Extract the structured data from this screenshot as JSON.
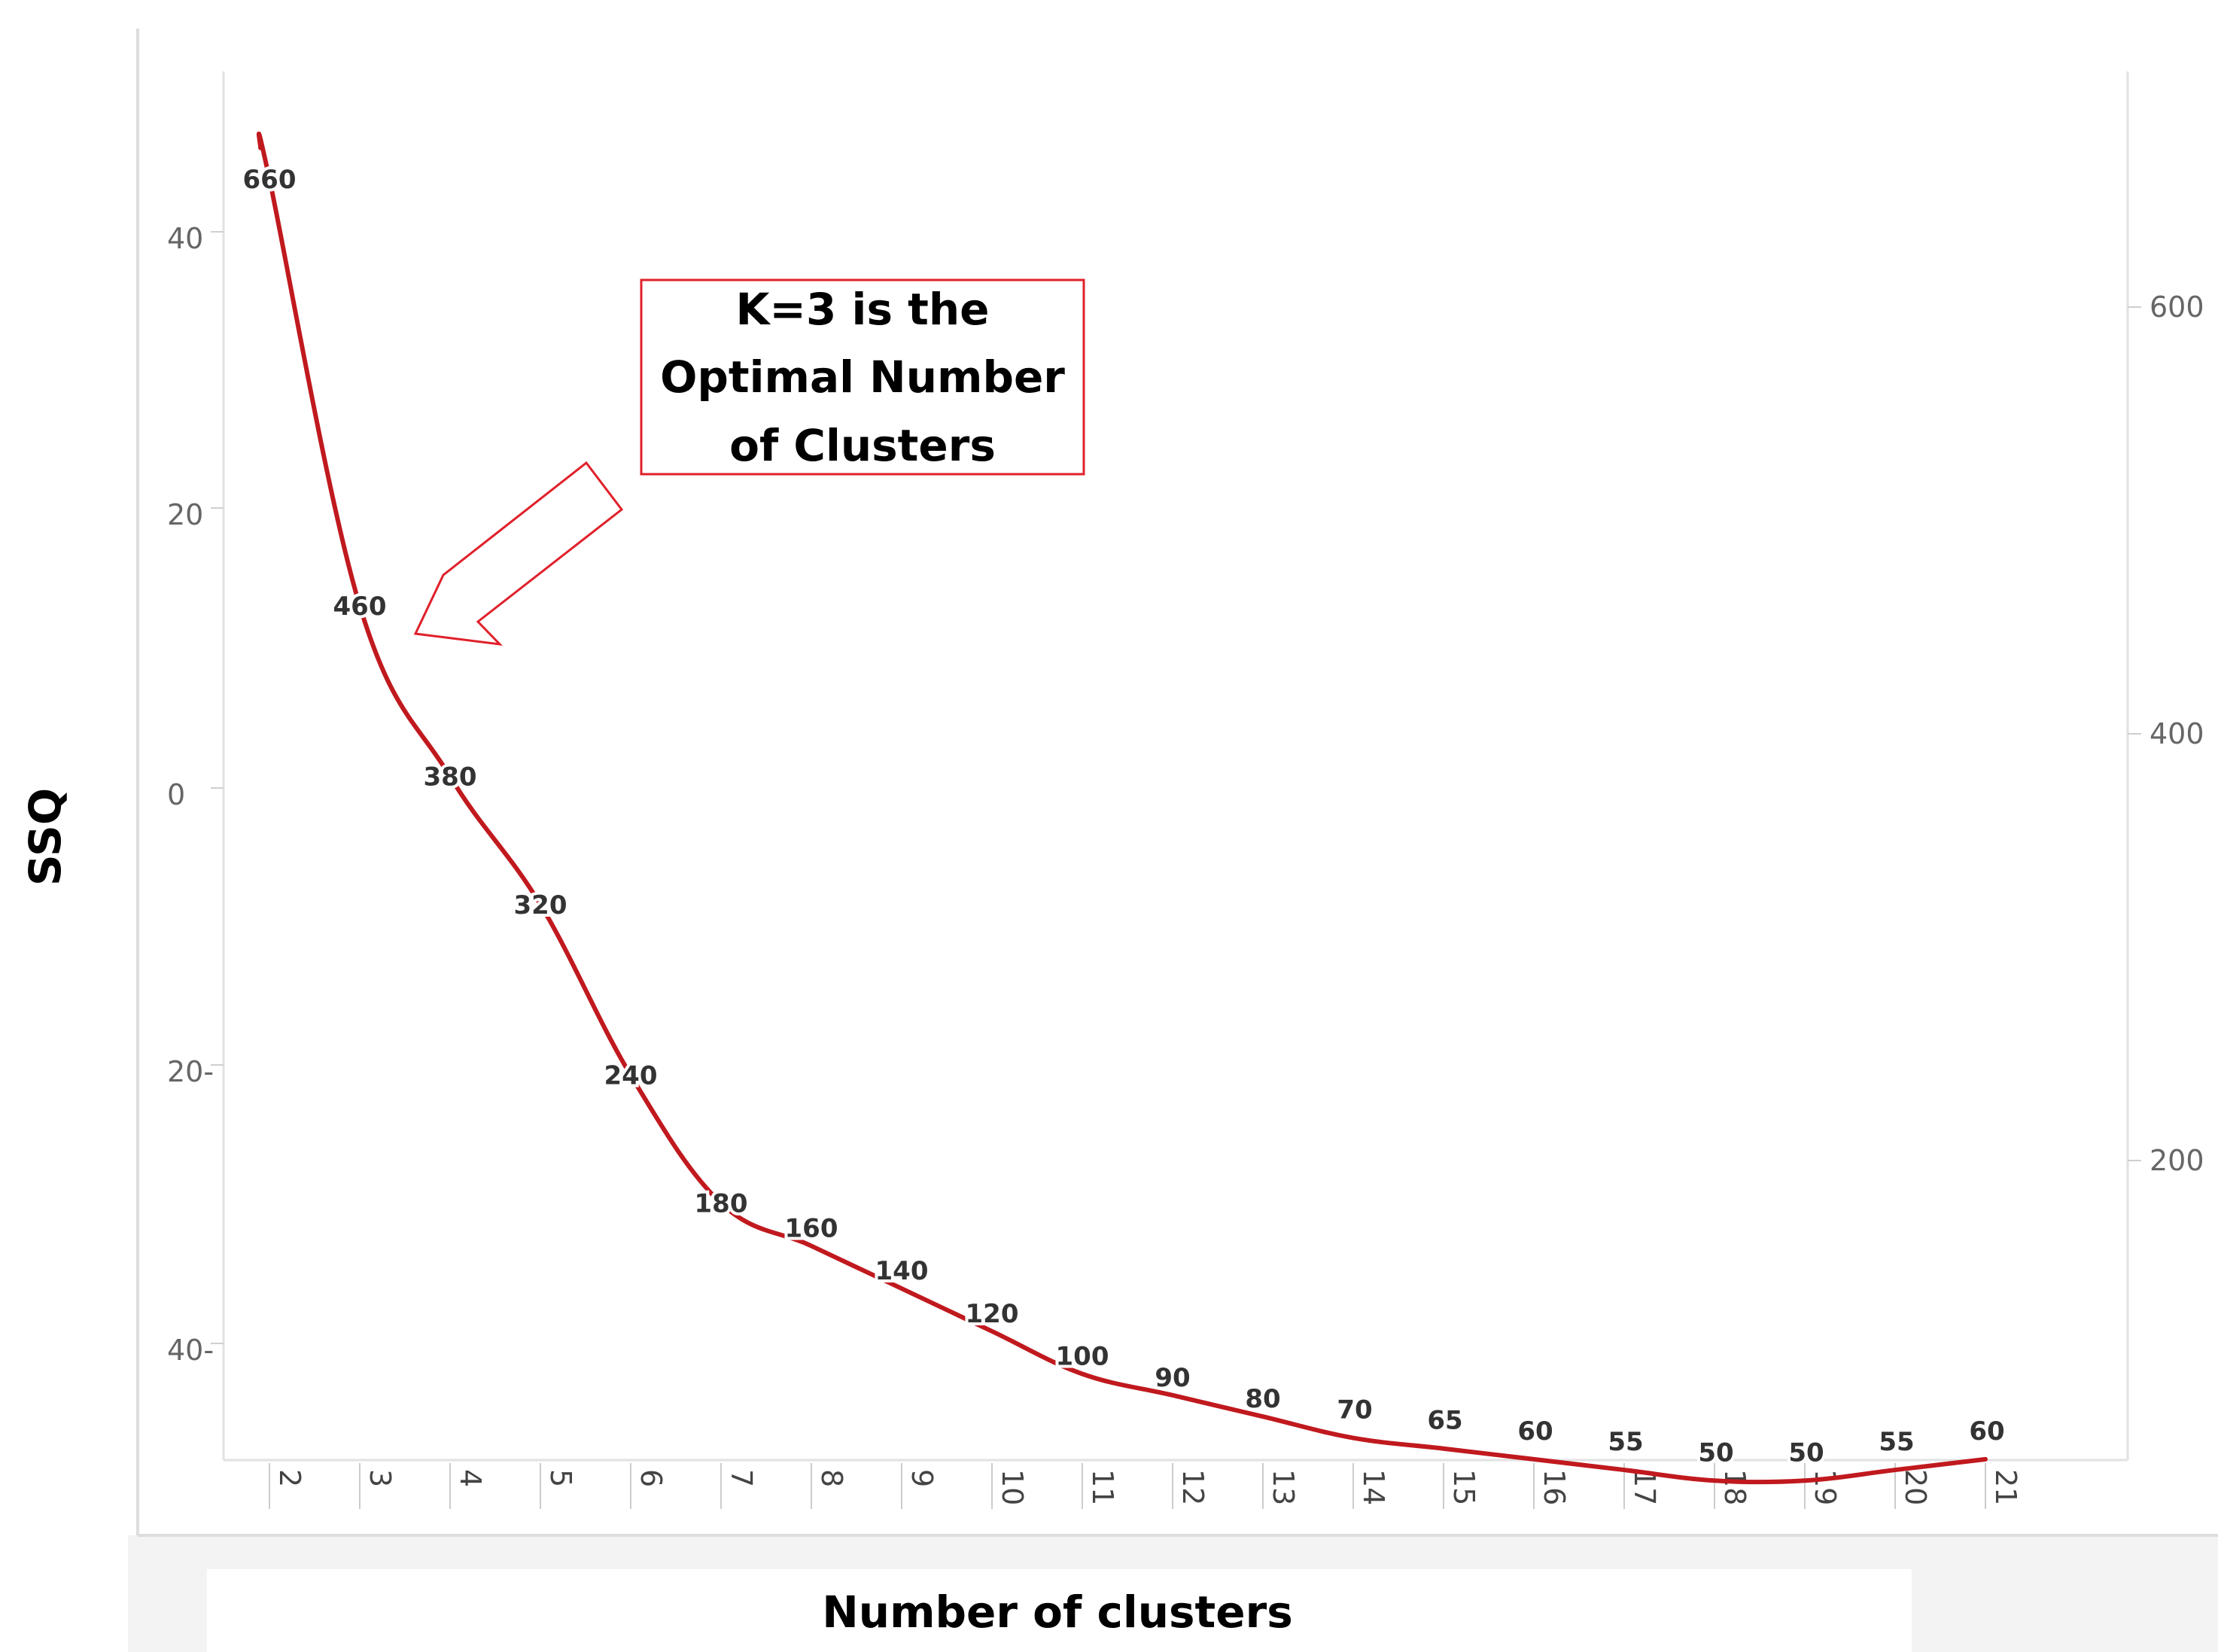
{
  "chart_data": {
    "type": "line",
    "xlabel": "Number of clusters",
    "ylabel": "SSQ",
    "x": [
      2,
      3,
      4,
      5,
      6,
      7,
      8,
      9,
      10,
      11,
      12,
      13,
      14,
      15,
      16,
      17,
      18,
      19,
      20,
      21
    ],
    "series": [
      {
        "values": [
          660,
          460,
          380,
          320,
          240,
          180,
          160,
          140,
          120,
          100,
          90,
          80,
          70,
          65,
          60,
          55,
          50,
          50,
          55,
          60
        ],
        "color": "#c0191e"
      }
    ],
    "right_axis": {
      "ticks": [
        "200",
        "400",
        "600"
      ],
      "range": [
        50,
        660
      ]
    },
    "left_axis": {
      "ticks": [
        "40",
        "20",
        "0",
        "20-",
        "40-"
      ]
    },
    "annotation": {
      "lines": [
        "K=3 is the",
        "Optimal Number",
        "of Clusters"
      ],
      "points_to_x": 3,
      "border_color": "#e0202a",
      "arrow_color": "#e0202a"
    },
    "grid": false,
    "legend": "none"
  }
}
